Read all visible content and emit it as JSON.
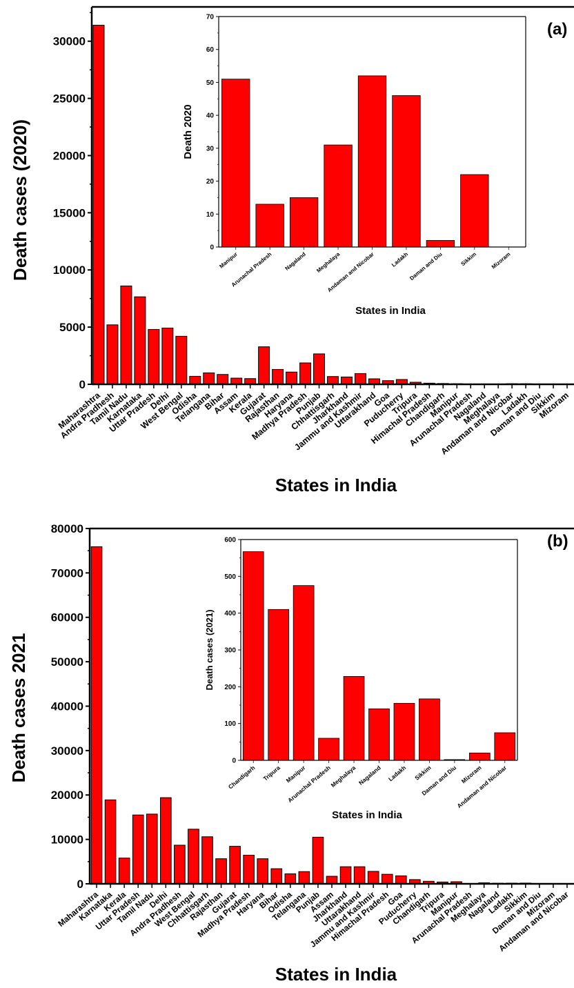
{
  "panel_labels": {
    "a": "(a)",
    "b": "(b)"
  },
  "colors": {
    "bar": "#ff0000",
    "axis": "#000000",
    "background": "#ffffff"
  },
  "chart_data": [
    {
      "id": "a-main",
      "type": "bar",
      "title": "",
      "xlabel": "States in India",
      "ylabel": "Death cases (2020)",
      "ylim": [
        0,
        33000
      ],
      "yticks": [
        0,
        5000,
        10000,
        15000,
        20000,
        25000,
        30000
      ],
      "grid": false,
      "legend": "none",
      "categories": [
        "Maharashtra",
        "Andra Pradhesh",
        "Tamil Nadu",
        "Karnataka",
        "Uttar Pradesh",
        "Delhi",
        "West Bengal",
        "Odisha",
        "Telangana",
        "Bihar",
        "Assam",
        "Kerala",
        "Gujarat",
        "Rajasthan",
        "Haryana",
        "Madhya Pradesh",
        "Punjab",
        "Chhattisgarh",
        "Jharkhand",
        "Jammu and Kashmir",
        "Uttarakhand",
        "Goa",
        "Puducherry",
        "Tripura",
        "Himachal Pradesh",
        "Chandigarh",
        "Manipur",
        "Arunachal Pradesh",
        "Nagaland",
        "Meghalaya",
        "Andaman and Nicobar",
        "Ladakh",
        "Daman and Diu",
        "Sikkim",
        "Mizoram"
      ],
      "values": [
        31400,
        5200,
        8600,
        7650,
        4800,
        4920,
        4200,
        700,
        1000,
        860,
        540,
        500,
        3280,
        1300,
        1070,
        1870,
        2660,
        680,
        640,
        940,
        480,
        320,
        420,
        180,
        100,
        70,
        51,
        13,
        15,
        31,
        52,
        46,
        2,
        22,
        0
      ]
    },
    {
      "id": "a-inset",
      "type": "bar",
      "title": "",
      "xlabel": "States in India",
      "ylabel": "Death 2020",
      "ylim": [
        0,
        70
      ],
      "yticks": [
        0,
        10,
        20,
        30,
        40,
        50,
        60,
        70
      ],
      "grid": false,
      "legend": "none",
      "categories": [
        "Manipur",
        "Arunachal Pradesh",
        "Nagaland",
        "Meghalaya",
        "Andaman and Nicobar",
        "Ladakh",
        "Daman and Diu",
        "Sikkim",
        "Mizoram"
      ],
      "values": [
        51,
        13,
        15,
        31,
        52,
        46,
        2,
        22,
        0
      ]
    },
    {
      "id": "b-main",
      "type": "bar",
      "title": "",
      "xlabel": "States in India",
      "ylabel": "Death cases 2021",
      "ylim": [
        0,
        80000
      ],
      "yticks": [
        0,
        10000,
        20000,
        30000,
        40000,
        50000,
        60000,
        70000,
        80000
      ],
      "grid": false,
      "legend": "none",
      "categories": [
        "Maharashtra",
        "Karnataka",
        "Kerala",
        "Uttar Pradesh",
        "Tamil Nadu",
        "Delhi",
        "Andra Pradhesh",
        "West Bengal",
        "Chhattisgarh",
        "Rajasthan",
        "Gujarat",
        "Madhya Pradesh",
        "Haryana",
        "Bihar",
        "Odisha",
        "Telangana",
        "Punjab",
        "Assam",
        "Jharkhand",
        "Uttarakhand",
        "Jammu and Kashmir",
        "Himachal Pradesh",
        "Goa",
        "Puducherry",
        "Chandigarh",
        "Tripura",
        "Manipur",
        "Arunachal Pradesh",
        "Meghalaya",
        "Nagaland",
        "Ladakh",
        "Sikkim",
        "Daman and Diu",
        "Mizoram",
        "Andaman and Nicobar"
      ],
      "values": [
        75900,
        18900,
        5800,
        15500,
        15700,
        19400,
        8700,
        12300,
        10600,
        5650,
        8450,
        6450,
        5650,
        3400,
        2250,
        2750,
        10500,
        1700,
        3850,
        3850,
        2800,
        2150,
        1800,
        950,
        570,
        410,
        475,
        60,
        228,
        140,
        155,
        167,
        2,
        20,
        75
      ]
    },
    {
      "id": "b-inset",
      "type": "bar",
      "title": "",
      "xlabel": "States in India",
      "ylabel": "Death cases (2021)",
      "ylim": [
        0,
        600
      ],
      "yticks": [
        0,
        100,
        200,
        300,
        400,
        500,
        600
      ],
      "grid": false,
      "legend": "none",
      "categories": [
        "Chandigarh",
        "Tripura",
        "Manipur",
        "Arunachal Pradesh",
        "Meghalaya",
        "Nagaland",
        "Ladakh",
        "Sikkim",
        "Daman and Diu",
        "Mizoram",
        "Andaman and Nicobar"
      ],
      "values": [
        567,
        410,
        475,
        60,
        228,
        140,
        155,
        167,
        2,
        20,
        75
      ]
    }
  ]
}
